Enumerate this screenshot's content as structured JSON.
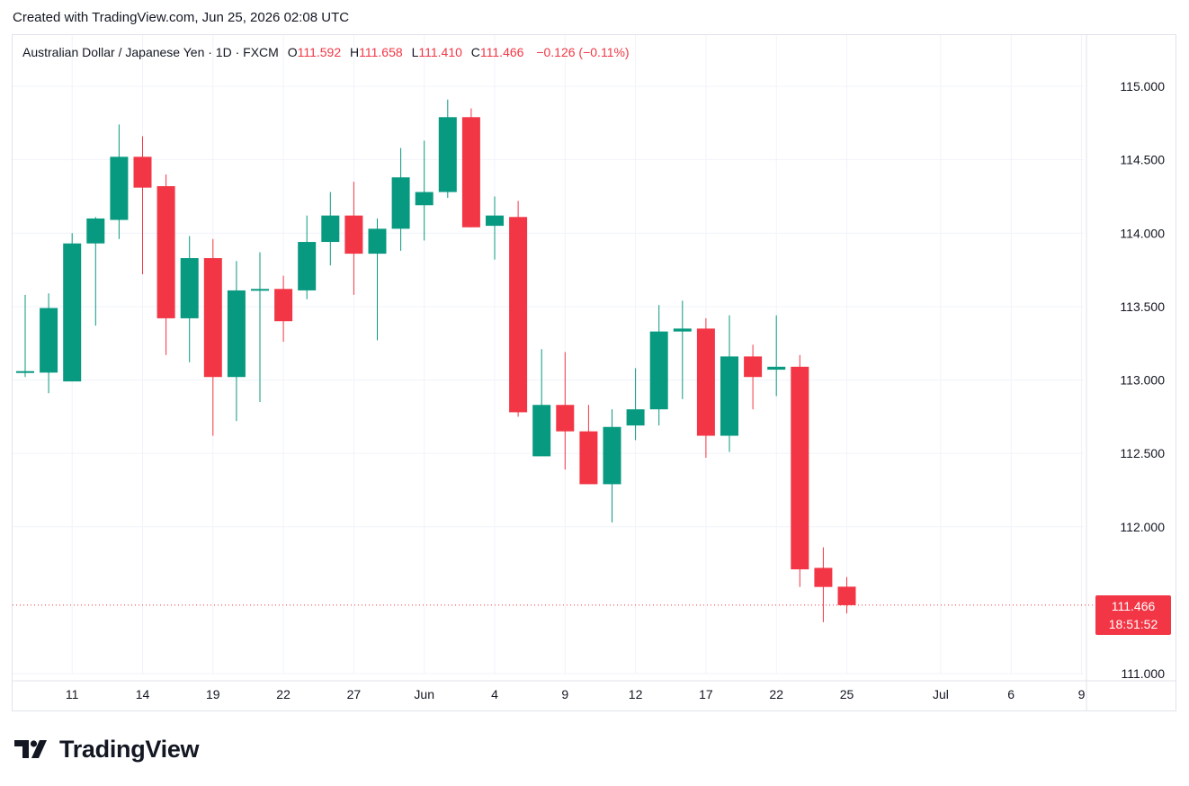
{
  "header": {
    "created_text": "Created with TradingView.com, Jun 25, 2026 02:08 UTC"
  },
  "legend": {
    "symbol": "Australian Dollar / Japanese Yen · 1D · FXCM",
    "o_label": "O",
    "o_value": "111.592",
    "h_label": "H",
    "h_value": "111.658",
    "l_label": "L",
    "l_value": "111.410",
    "c_label": "C",
    "c_value": "111.466",
    "change": "−0.126 (−0.11%)"
  },
  "price_tag": {
    "price": "111.466",
    "countdown": "18:51:52"
  },
  "brand": {
    "name": "TradingView"
  },
  "colors": {
    "up": "#089981",
    "down": "#f23645",
    "grid": "#f0f3fa",
    "text": "#131722"
  },
  "chart_data": {
    "type": "candlestick",
    "title": "Australian Dollar / Japanese Yen · 1D · FXCM",
    "ylim": [
      111.0,
      115.2
    ],
    "y_ticks": [
      "115.000",
      "114.500",
      "114.000",
      "113.500",
      "113.000",
      "112.500",
      "112.000",
      "111.000"
    ],
    "x_ticks": [
      "11",
      "14",
      "19",
      "22",
      "27",
      "Jun",
      "4",
      "9",
      "12",
      "17",
      "22",
      "25",
      "Jul",
      "6",
      "9"
    ],
    "x_tick_index": [
      2,
      5,
      8,
      11,
      14,
      17,
      20,
      23,
      26,
      29,
      32,
      35,
      39,
      42,
      45
    ],
    "last_price": 111.466,
    "grid": true,
    "candles": [
      {
        "o": 113.06,
        "h": 113.58,
        "l": 113.02,
        "c": 113.06
      },
      {
        "o": 113.05,
        "h": 113.59,
        "l": 112.91,
        "c": 113.49
      },
      {
        "o": 112.99,
        "h": 114.0,
        "l": 112.99,
        "c": 113.93
      },
      {
        "o": 113.93,
        "h": 114.11,
        "l": 113.37,
        "c": 114.1
      },
      {
        "o": 114.09,
        "h": 114.74,
        "l": 113.96,
        "c": 114.52
      },
      {
        "o": 114.52,
        "h": 114.66,
        "l": 113.72,
        "c": 114.31
      },
      {
        "o": 114.32,
        "h": 114.4,
        "l": 113.17,
        "c": 113.42
      },
      {
        "o": 113.42,
        "h": 113.98,
        "l": 113.12,
        "c": 113.83
      },
      {
        "o": 113.83,
        "h": 113.96,
        "l": 112.62,
        "c": 113.02
      },
      {
        "o": 113.02,
        "h": 113.81,
        "l": 112.72,
        "c": 113.61
      },
      {
        "o": 113.61,
        "h": 113.87,
        "l": 112.85,
        "c": 113.62
      },
      {
        "o": 113.62,
        "h": 113.71,
        "l": 113.26,
        "c": 113.4
      },
      {
        "o": 113.61,
        "h": 114.12,
        "l": 113.55,
        "c": 113.94
      },
      {
        "o": 113.94,
        "h": 114.28,
        "l": 113.78,
        "c": 114.12
      },
      {
        "o": 114.12,
        "h": 114.35,
        "l": 113.58,
        "c": 113.86
      },
      {
        "o": 113.86,
        "h": 114.1,
        "l": 113.27,
        "c": 114.03
      },
      {
        "o": 114.03,
        "h": 114.58,
        "l": 113.88,
        "c": 114.38
      },
      {
        "o": 114.19,
        "h": 114.63,
        "l": 113.95,
        "c": 114.28
      },
      {
        "o": 114.28,
        "h": 114.91,
        "l": 114.24,
        "c": 114.79
      },
      {
        "o": 114.79,
        "h": 114.85,
        "l": 114.04,
        "c": 114.04
      },
      {
        "o": 114.05,
        "h": 114.25,
        "l": 113.82,
        "c": 114.12
      },
      {
        "o": 114.11,
        "h": 114.22,
        "l": 112.75,
        "c": 112.78
      },
      {
        "o": 112.48,
        "h": 113.21,
        "l": 112.48,
        "c": 112.83
      },
      {
        "o": 112.83,
        "h": 113.19,
        "l": 112.39,
        "c": 112.65
      },
      {
        "o": 112.65,
        "h": 112.83,
        "l": 112.29,
        "c": 112.29
      },
      {
        "o": 112.29,
        "h": 112.8,
        "l": 112.03,
        "c": 112.68
      },
      {
        "o": 112.69,
        "h": 113.08,
        "l": 112.59,
        "c": 112.8
      },
      {
        "o": 112.8,
        "h": 113.51,
        "l": 112.69,
        "c": 113.33
      },
      {
        "o": 113.33,
        "h": 113.54,
        "l": 112.87,
        "c": 113.35
      },
      {
        "o": 113.35,
        "h": 113.42,
        "l": 112.47,
        "c": 112.62
      },
      {
        "o": 112.62,
        "h": 113.44,
        "l": 112.51,
        "c": 113.16
      },
      {
        "o": 113.16,
        "h": 113.24,
        "l": 112.8,
        "c": 113.02
      },
      {
        "o": 113.07,
        "h": 113.44,
        "l": 112.89,
        "c": 113.09
      },
      {
        "o": 113.09,
        "h": 113.17,
        "l": 111.59,
        "c": 111.71
      },
      {
        "o": 111.72,
        "h": 111.86,
        "l": 111.35,
        "c": 111.59
      },
      {
        "o": 111.592,
        "h": 111.658,
        "l": 111.41,
        "c": 111.466
      }
    ]
  }
}
